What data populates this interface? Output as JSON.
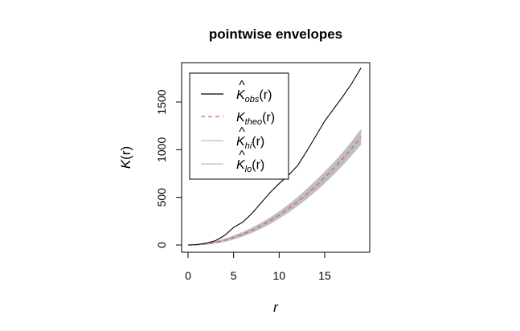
{
  "chart_data": {
    "type": "line",
    "title": "pointwise envelopes",
    "xlabel": "r",
    "ylabel": "K(r)",
    "xlim": [
      0,
      19
    ],
    "ylim": [
      0,
      1850
    ],
    "x_ticks": [
      0,
      5,
      10,
      15
    ],
    "x_tick_labels": [
      "0",
      "5",
      "10",
      "15"
    ],
    "y_ticks": [
      0,
      500,
      1000,
      1500
    ],
    "y_tick_labels": [
      "0",
      "500",
      "1000",
      "1500"
    ],
    "grid": false,
    "legend_position": "top-left",
    "x": [
      0,
      1,
      2,
      3,
      4,
      5,
      6,
      7,
      8,
      9,
      10,
      11,
      12,
      13,
      14,
      15,
      16,
      17,
      18,
      19
    ],
    "series": [
      {
        "name": "K̂obs(r)",
        "style": "solid",
        "color": "#000000",
        "values": [
          0,
          5,
          20,
          45,
          100,
          185,
          240,
          330,
          440,
          550,
          645,
          730,
          830,
          980,
          1140,
          1300,
          1430,
          1560,
          1700,
          1860
        ]
      },
      {
        "name": "Ktheo(r)",
        "style": "dashed",
        "color": "#DF536B",
        "values": [
          0,
          3,
          13,
          28,
          50,
          79,
          113,
          154,
          201,
          254,
          314,
          380,
          452,
          531,
          616,
          707,
          804,
          908,
          1018,
          1134
        ]
      },
      {
        "name": "K̂hi(r)",
        "style": "solid",
        "color": "#BEBEBE",
        "values": [
          0,
          5,
          18,
          36,
          62,
          95,
          132,
          176,
          226,
          283,
          348,
          418,
          495,
          579,
          668,
          762,
          862,
          968,
          1085,
          1210
        ]
      },
      {
        "name": "K̂lo(r)",
        "style": "solid",
        "color": "#BEBEBE",
        "values": [
          0,
          1,
          8,
          20,
          38,
          63,
          94,
          132,
          176,
          226,
          283,
          345,
          413,
          486,
          566,
          653,
          746,
          845,
          950,
          1060
        ]
      }
    ],
    "envelope_fill": "#BEBEBE"
  },
  "legend": {
    "items": [
      {
        "main": "K",
        "hat": true,
        "sub": "obs",
        "arg": "(r)"
      },
      {
        "main": "K",
        "hat": false,
        "sub": "theo",
        "arg": "(r)"
      },
      {
        "main": "K",
        "hat": true,
        "sub": "hi",
        "arg": "(r)"
      },
      {
        "main": "K",
        "hat": true,
        "sub": "lo",
        "arg": "(r)"
      }
    ]
  },
  "ylabel_parts": {
    "main": "K",
    "arg": "(r)"
  }
}
